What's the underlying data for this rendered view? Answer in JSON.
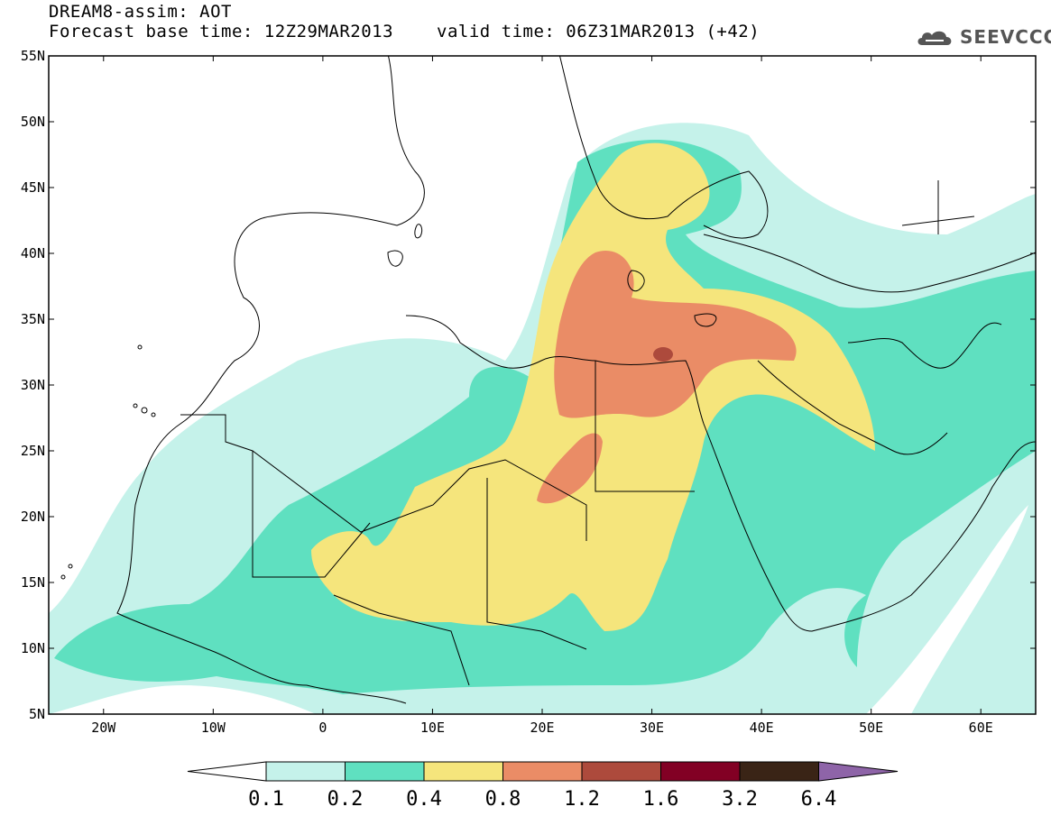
{
  "header": {
    "title_line1": "DREAM8-assim: AOT",
    "title_line2": "Forecast base time: 12Z29MAR2013",
    "valid_time": "valid time: 06Z31MAR2013 (+42)",
    "logo_text": "SEEVCCC"
  },
  "map": {
    "lat_labels": [
      "55N",
      "50N",
      "45N",
      "40N",
      "35N",
      "30N",
      "25N",
      "20N",
      "15N",
      "10N",
      "5N"
    ],
    "lon_labels": [
      "20W",
      "10W",
      "0",
      "10E",
      "20E",
      "30E",
      "40E",
      "50E",
      "60E"
    ],
    "extent": {
      "lon": [
        -25,
        65
      ],
      "lat": [
        5,
        55
      ]
    }
  },
  "colorbar": {
    "labels": [
      "0.1",
      "0.2",
      "0.4",
      "0.8",
      "1.2",
      "1.6",
      "3.2",
      "6.4"
    ],
    "colors": [
      "#ffffff",
      "#c5f2ea",
      "#5fe0c0",
      "#f5e57c",
      "#ea8c66",
      "#ad4a3c",
      "#820024",
      "#3a2416",
      "#8e64a8"
    ]
  }
}
